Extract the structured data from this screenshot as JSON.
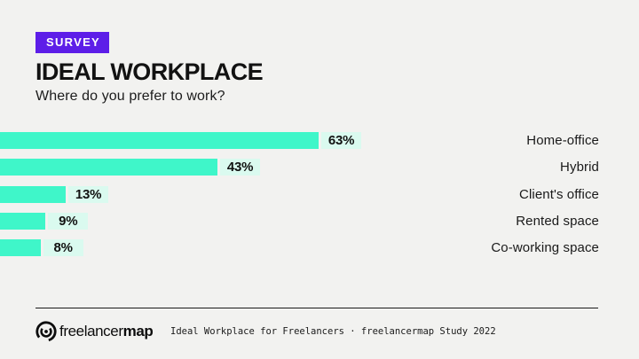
{
  "page": {
    "background_color": "#F2F2F0",
    "text_color": "#121212"
  },
  "header": {
    "badge_label": "SURVEY",
    "badge_color": "#5D1EE8",
    "badge_text_color": "#FFFFFF",
    "title": "IDEAL WORKPLACE",
    "subtitle": "Where do you prefer to work?"
  },
  "chart_data": {
    "type": "bar",
    "orientation": "horizontal",
    "categories": [
      "Home-office",
      "Hybrid",
      "Client's office",
      "Rented space",
      "Co-working space"
    ],
    "values": [
      63,
      43,
      13,
      9,
      8
    ],
    "value_suffix": "%",
    "xlim": [
      0,
      70
    ],
    "grid": false,
    "legend": false,
    "bar_color": "#3FF6C9",
    "value_chip_color": "#DAFAEF",
    "category_label_position": "right",
    "title": "IDEAL WORKPLACE",
    "xlabel": "",
    "ylabel": ""
  },
  "footer": {
    "logo": {
      "regular": "freelancer",
      "bold": "map"
    },
    "caption": "Ideal Workplace for Freelancers · freelancermap Study 2022"
  }
}
